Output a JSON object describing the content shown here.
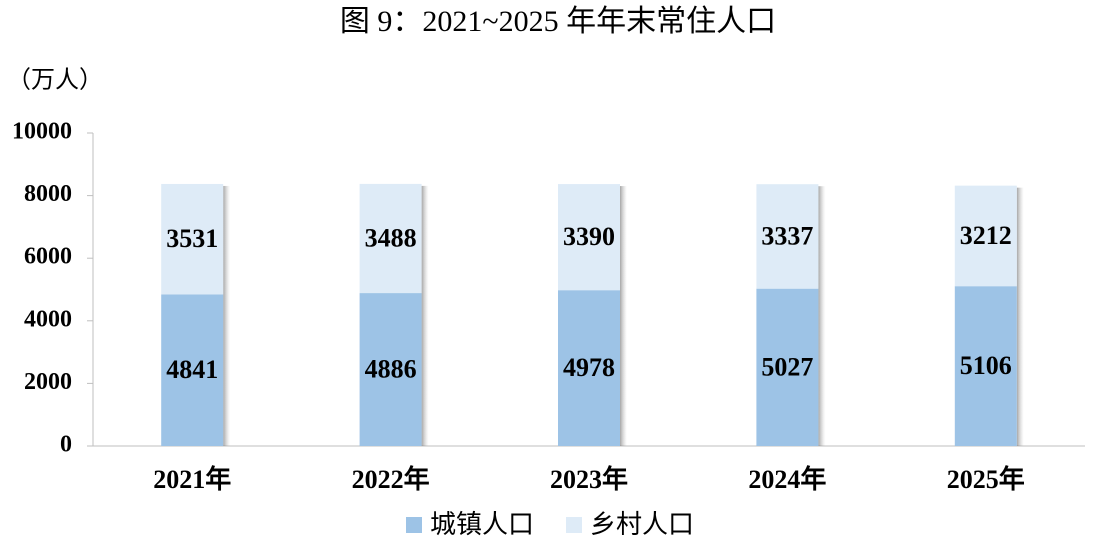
{
  "chart_data": {
    "type": "stacked_bar",
    "title": "图 9：2021~2025 年年末常住人口",
    "y_axis_label": "（万人）",
    "categories": [
      "2021年",
      "2022年",
      "2023年",
      "2024年",
      "2025年"
    ],
    "series": [
      {
        "name": "城镇人口",
        "color": "#9dc3e6",
        "values": [
          4841,
          4886,
          4978,
          5027,
          5106
        ]
      },
      {
        "name": "乡村人口",
        "color": "#deebf7",
        "values": [
          3531,
          3488,
          3390,
          3337,
          3212
        ]
      }
    ],
    "ylim": [
      0,
      10000
    ],
    "yticks": [
      0,
      2000,
      4000,
      6000,
      8000,
      10000
    ],
    "grid": false,
    "legend": "bottom"
  }
}
